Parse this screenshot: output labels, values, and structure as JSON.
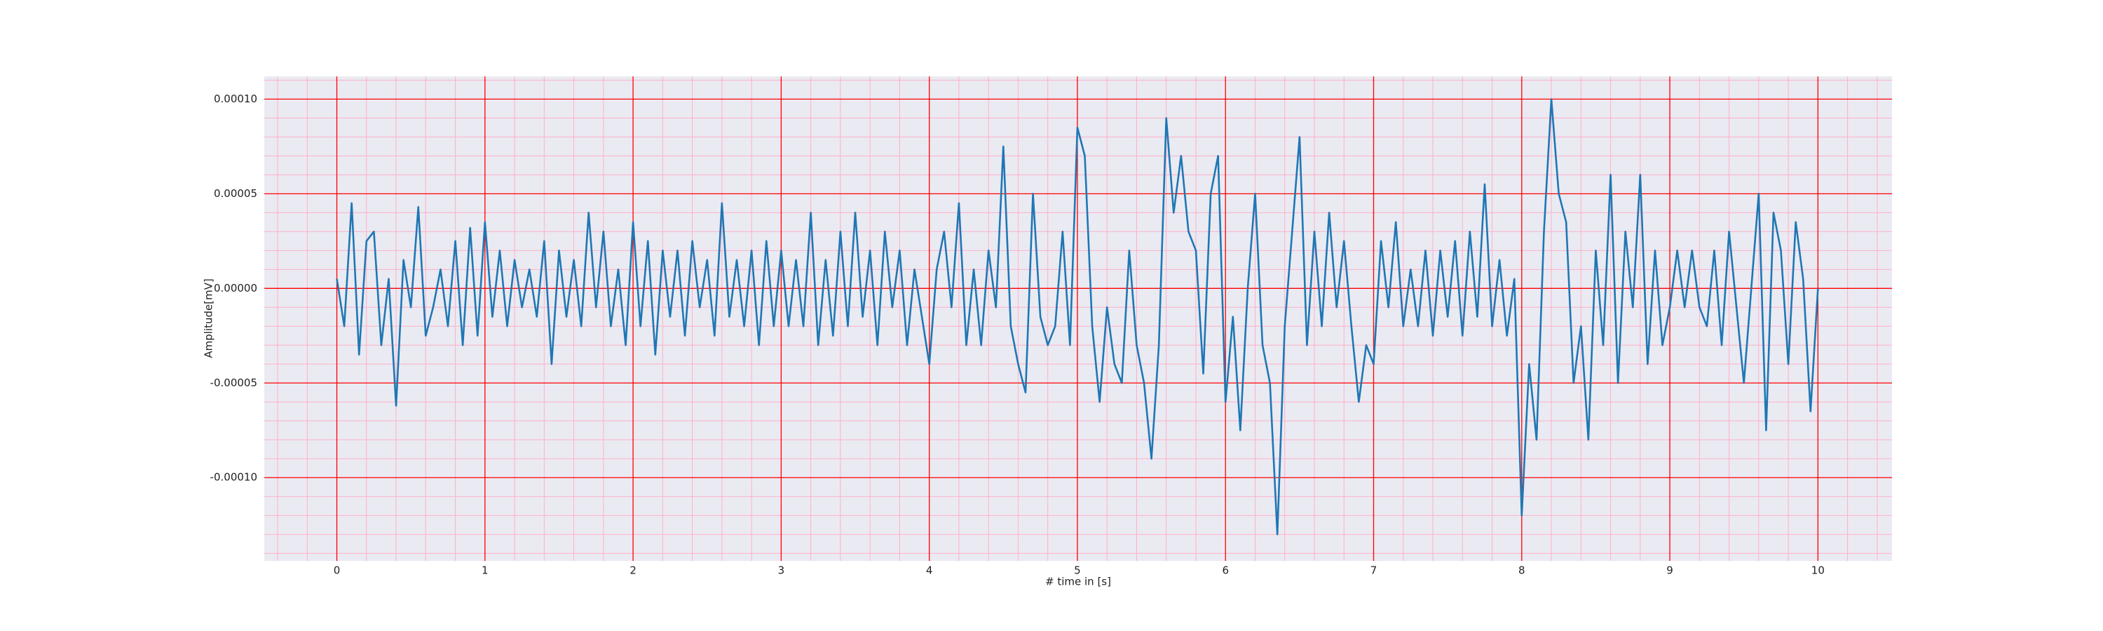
{
  "chart_data": {
    "type": "line",
    "xlabel": "# time in [s]",
    "ylabel": "Amplitude[mV]",
    "color": "#1f77b4",
    "grid": true,
    "grid_color": "#ff0000",
    "minor_grid_color": "#ffb0c8",
    "background": "#eaeaf2",
    "xlim": [
      -0.49,
      10.5
    ],
    "ylim": [
      -0.000144,
      0.000112
    ],
    "xticks": [
      0,
      1,
      2,
      3,
      4,
      5,
      6,
      7,
      8,
      9,
      10
    ],
    "yticks": [
      {
        "value": -0.0001,
        "label": "-0.00010"
      },
      {
        "value": -5e-05,
        "label": "-0.00005"
      },
      {
        "value": 0,
        "label": "0.00000"
      },
      {
        "value": 5e-05,
        "label": "0.00005"
      },
      {
        "value": 0.0001,
        "label": "0.00010"
      }
    ],
    "xminorticks": [
      -0.4,
      -0.2,
      0.2,
      0.4,
      0.6,
      0.8,
      1.2,
      1.4,
      1.6,
      1.8,
      2.2,
      2.4,
      2.6,
      2.8,
      3.2,
      3.4,
      3.6,
      3.8,
      4.2,
      4.4,
      4.6,
      4.8,
      5.2,
      5.4,
      5.6,
      5.8,
      6.2,
      6.4,
      6.6,
      6.8,
      7.2,
      7.4,
      7.6,
      7.8,
      8.2,
      8.4,
      8.6,
      8.8,
      9.2,
      9.4,
      9.6,
      9.8,
      10.2,
      10.4
    ],
    "yminorticks": [
      -0.00014,
      -0.00013,
      -0.00012,
      -0.00011,
      -9e-05,
      -8e-05,
      -7e-05,
      -6e-05,
      -4e-05,
      -3e-05,
      -2e-05,
      -1e-05,
      1e-05,
      2e-05,
      3e-05,
      4e-05,
      6e-05,
      7e-05,
      8e-05,
      9e-05,
      0.00011
    ],
    "x": [
      0,
      0.05,
      0.1,
      0.15,
      0.2,
      0.25,
      0.3,
      0.35,
      0.4,
      0.45,
      0.5,
      0.55,
      0.6,
      0.65,
      0.7,
      0.75,
      0.8,
      0.85,
      0.9,
      0.95,
      1,
      1.05,
      1.1,
      1.15,
      1.2,
      1.25,
      1.3,
      1.35,
      1.4,
      1.45,
      1.5,
      1.55,
      1.6,
      1.65,
      1.7,
      1.75,
      1.8,
      1.85,
      1.9,
      1.95,
      2,
      2.05,
      2.1,
      2.15,
      2.2,
      2.25,
      2.3,
      2.35,
      2.4,
      2.45,
      2.5,
      2.55,
      2.6,
      2.65,
      2.7,
      2.75,
      2.8,
      2.85,
      2.9,
      2.95,
      3,
      3.05,
      3.1,
      3.15,
      3.2,
      3.25,
      3.3,
      3.35,
      3.4,
      3.45,
      3.5,
      3.55,
      3.6,
      3.65,
      3.7,
      3.75,
      3.8,
      3.85,
      3.9,
      3.95,
      4,
      4.05,
      4.1,
      4.15,
      4.2,
      4.25,
      4.3,
      4.35,
      4.4,
      4.45,
      4.5,
      4.55,
      4.6,
      4.65,
      4.7,
      4.75,
      4.8,
      4.85,
      4.9,
      4.95,
      5,
      5.05,
      5.1,
      5.15,
      5.2,
      5.25,
      5.3,
      5.35,
      5.4,
      5.45,
      5.5,
      5.55,
      5.6,
      5.65,
      5.7,
      5.75,
      5.8,
      5.85,
      5.9,
      5.95,
      6,
      6.05,
      6.1,
      6.15,
      6.2,
      6.25,
      6.3,
      6.35,
      6.4,
      6.45,
      6.5,
      6.55,
      6.6,
      6.65,
      6.7,
      6.75,
      6.8,
      6.85,
      6.9,
      6.95,
      7,
      7.05,
      7.1,
      7.15,
      7.2,
      7.25,
      7.3,
      7.35,
      7.4,
      7.45,
      7.5,
      7.55,
      7.6,
      7.65,
      7.7,
      7.75,
      7.8,
      7.85,
      7.9,
      7.95,
      8,
      8.05,
      8.1,
      8.15,
      8.2,
      8.25,
      8.3,
      8.35,
      8.4,
      8.45,
      8.5,
      8.55,
      8.6,
      8.65,
      8.7,
      8.75,
      8.8,
      8.85,
      8.9,
      8.95,
      9,
      9.05,
      9.1,
      9.15,
      9.2,
      9.25,
      9.3,
      9.35,
      9.4,
      9.45,
      9.5,
      9.55,
      9.6,
      9.65,
      9.7,
      9.75,
      9.8,
      9.85,
      9.9,
      9.95,
      10
    ],
    "values": [
      5e-06,
      -2e-05,
      4.5e-05,
      -3.5e-05,
      2.5e-05,
      3e-05,
      -3e-05,
      5e-06,
      -6.2e-05,
      1.5e-05,
      -1e-05,
      4.3e-05,
      -2.5e-05,
      -1e-05,
      1e-05,
      -2e-05,
      2.5e-05,
      -3e-05,
      3.2e-05,
      -2.5e-05,
      3.5e-05,
      -1.5e-05,
      2e-05,
      -2e-05,
      1.5e-05,
      -1e-05,
      1e-05,
      -1.5e-05,
      2.5e-05,
      -4e-05,
      2e-05,
      -1.5e-05,
      1.5e-05,
      -2e-05,
      4e-05,
      -1e-05,
      3e-05,
      -2e-05,
      1e-05,
      -3e-05,
      3.5e-05,
      -2e-05,
      2.5e-05,
      -3.5e-05,
      2e-05,
      -1.5e-05,
      2e-05,
      -2.5e-05,
      2.5e-05,
      -1e-05,
      1.5e-05,
      -2.5e-05,
      4.5e-05,
      -1.5e-05,
      1.5e-05,
      -2e-05,
      2e-05,
      -3e-05,
      2.5e-05,
      -2e-05,
      2e-05,
      -2e-05,
      1.5e-05,
      -2e-05,
      4e-05,
      -3e-05,
      1.5e-05,
      -2.5e-05,
      3e-05,
      -2e-05,
      4e-05,
      -1.5e-05,
      2e-05,
      -3e-05,
      3e-05,
      -1e-05,
      2e-05,
      -3e-05,
      1e-05,
      -1.5e-05,
      -4e-05,
      1e-05,
      3e-05,
      -1e-05,
      4.5e-05,
      -3e-05,
      1e-05,
      -3e-05,
      2e-05,
      -1e-05,
      7.5e-05,
      -2e-05,
      -4e-05,
      -5.5e-05,
      5e-05,
      -1.5e-05,
      -3e-05,
      -2e-05,
      3e-05,
      -3e-05,
      8.5e-05,
      7e-05,
      -2e-05,
      -6e-05,
      -1e-05,
      -4e-05,
      -5e-05,
      2e-05,
      -3e-05,
      -5e-05,
      -9e-05,
      -3e-05,
      9e-05,
      4e-05,
      7e-05,
      3e-05,
      2e-05,
      -4.5e-05,
      5e-05,
      7e-05,
      -6e-05,
      -1.5e-05,
      -7.5e-05,
      0,
      5e-05,
      -3e-05,
      -5e-05,
      -0.00013,
      -2e-05,
      3e-05,
      8e-05,
      -3e-05,
      3e-05,
      -2e-05,
      4e-05,
      -1e-05,
      2.5e-05,
      -2e-05,
      -6e-05,
      -3e-05,
      -4e-05,
      2.5e-05,
      -1e-05,
      3.5e-05,
      -2e-05,
      1e-05,
      -2e-05,
      2e-05,
      -2.5e-05,
      2e-05,
      -1.5e-05,
      2.5e-05,
      -2.5e-05,
      3e-05,
      -1.5e-05,
      5.5e-05,
      -2e-05,
      1.5e-05,
      -2.5e-05,
      5e-06,
      -0.00012,
      -4e-05,
      -8e-05,
      3e-05,
      0.0001,
      5e-05,
      3.5e-05,
      -5e-05,
      -2e-05,
      -8e-05,
      2e-05,
      -3e-05,
      6e-05,
      -5e-05,
      3e-05,
      -1e-05,
      6e-05,
      -4e-05,
      2e-05,
      -3e-05,
      -1e-05,
      2e-05,
      -1e-05,
      2e-05,
      -1e-05,
      -2e-05,
      2e-05,
      -3e-05,
      3e-05,
      -1e-05,
      -5e-05,
      0,
      5e-05,
      -7.5e-05,
      4e-05,
      2e-05,
      -4e-05,
      3.5e-05,
      5e-06,
      -6.5e-05,
      0
    ]
  }
}
